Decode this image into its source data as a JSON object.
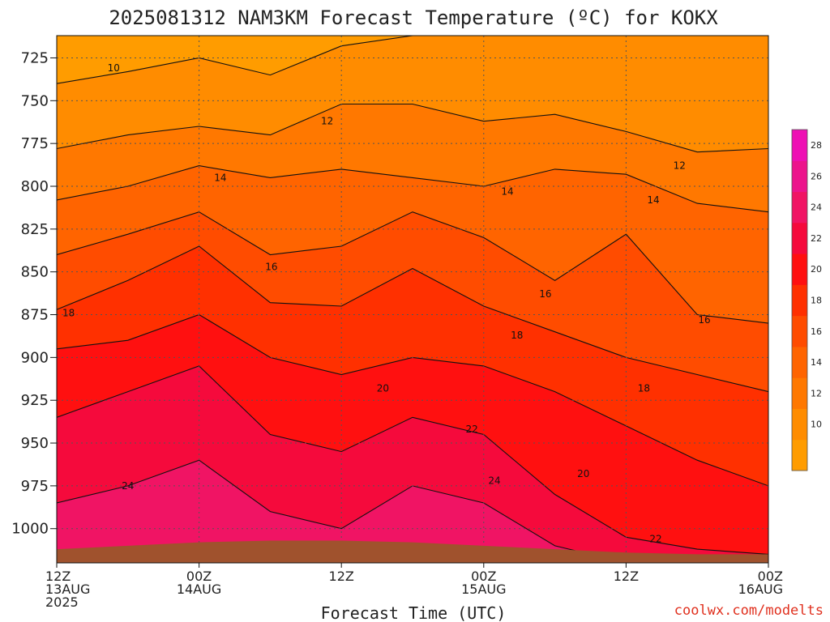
{
  "title": "2025081312 NAM3KM Forecast Temperature (ºC) for KOKX",
  "credit": "coolwx.com/modelts",
  "colors": {
    "background": "#ffffff",
    "ground": "#a0522d",
    "grid": "#555555",
    "contour": "#111111",
    "credit": "#e0301e"
  },
  "chart_data": {
    "type": "heatmap",
    "title": "2025081312 NAM3KM Forecast Temperature (ºC) for KOKX",
    "xlabel": "Forecast Time (UTC)",
    "ylabel": "",
    "x_ticks": [
      {
        "hour": 0,
        "lines": [
          "12Z",
          "13AUG",
          "2025"
        ]
      },
      {
        "hour": 12,
        "lines": [
          "00Z",
          "14AUG"
        ]
      },
      {
        "hour": 24,
        "lines": [
          "12Z"
        ]
      },
      {
        "hour": 36,
        "lines": [
          "00Z",
          "15AUG"
        ]
      },
      {
        "hour": 48,
        "lines": [
          "12Z"
        ]
      },
      {
        "hour": 60,
        "lines": [
          "00Z",
          "16AUG"
        ]
      }
    ],
    "xlim_hours": [
      0,
      60
    ],
    "y_ticks": [
      725,
      750,
      775,
      800,
      825,
      850,
      875,
      900,
      925,
      950,
      975,
      1000
    ],
    "ylim_hPa": [
      712,
      1020
    ],
    "y_inverted": true,
    "grid": true,
    "colorbar": {
      "placement": "right",
      "tick_labels": [
        "10",
        "12",
        "14",
        "16",
        "18",
        "20",
        "22",
        "24",
        "26",
        "28"
      ],
      "levels": [
        8,
        10,
        12,
        14,
        16,
        18,
        20,
        22,
        24,
        26,
        28,
        30
      ],
      "colors": [
        "#ff9c00",
        "#ff8c00",
        "#ff7800",
        "#ff6400",
        "#ff4c00",
        "#ff3000",
        "#ff1010",
        "#f50a3c",
        "#f01464",
        "#ec148c",
        "#ee10b4"
      ]
    },
    "isotherm_hPa_by_hour": {
      "hours": [
        0,
        6,
        12,
        18,
        24,
        30,
        36,
        42,
        48,
        54,
        60
      ],
      "10": [
        740,
        733,
        725,
        735,
        718,
        712,
        712,
        712,
        712,
        712,
        712
      ],
      "12": [
        778,
        770,
        765,
        770,
        752,
        752,
        762,
        758,
        768,
        780,
        778
      ],
      "14": [
        808,
        800,
        788,
        795,
        790,
        795,
        800,
        790,
        793,
        810,
        815
      ],
      "16": [
        840,
        828,
        815,
        840,
        835,
        815,
        830,
        855,
        828,
        875,
        880
      ],
      "18": [
        872,
        855,
        835,
        868,
        870,
        848,
        870,
        885,
        900,
        910,
        920
      ],
      "20": [
        895,
        890,
        875,
        900,
        910,
        900,
        905,
        920,
        940,
        960,
        975
      ],
      "22": [
        935,
        920,
        905,
        945,
        955,
        935,
        945,
        980,
        1005,
        1012,
        1015
      ],
      "24": [
        985,
        975,
        960,
        990,
        1000,
        975,
        985,
        1010,
        1020,
        1020,
        1020
      ]
    },
    "contour_labels": [
      {
        "text": "10",
        "hour": 4.8,
        "hPa": 731
      },
      {
        "text": "12",
        "hour": 22.8,
        "hPa": 762
      },
      {
        "text": "12",
        "hour": 52.5,
        "hPa": 788
      },
      {
        "text": "14",
        "hour": 13.8,
        "hPa": 795
      },
      {
        "text": "14",
        "hour": 38.0,
        "hPa": 803
      },
      {
        "text": "14",
        "hour": 50.3,
        "hPa": 808
      },
      {
        "text": "16",
        "hour": 18.1,
        "hPa": 847
      },
      {
        "text": "16",
        "hour": 41.2,
        "hPa": 863
      },
      {
        "text": "16",
        "hour": 54.6,
        "hPa": 878
      },
      {
        "text": "18",
        "hour": 1.0,
        "hPa": 874
      },
      {
        "text": "18",
        "hour": 38.8,
        "hPa": 887
      },
      {
        "text": "18",
        "hour": 49.5,
        "hPa": 918
      },
      {
        "text": "20",
        "hour": 27.5,
        "hPa": 918
      },
      {
        "text": "20",
        "hour": 44.4,
        "hPa": 968
      },
      {
        "text": "22",
        "hour": 35.0,
        "hPa": 942
      },
      {
        "text": "22",
        "hour": 50.5,
        "hPa": 1006
      },
      {
        "text": "24",
        "hour": 6.0,
        "hPa": 975
      },
      {
        "text": "24",
        "hour": 36.9,
        "hPa": 972
      }
    ],
    "ground_surface_hPa": {
      "hours": [
        0,
        6,
        12,
        18,
        24,
        30,
        36,
        42,
        48,
        54,
        60
      ],
      "values": [
        1012,
        1010,
        1008,
        1007,
        1007,
        1008,
        1010,
        1012,
        1014,
        1015,
        1015
      ]
    }
  }
}
